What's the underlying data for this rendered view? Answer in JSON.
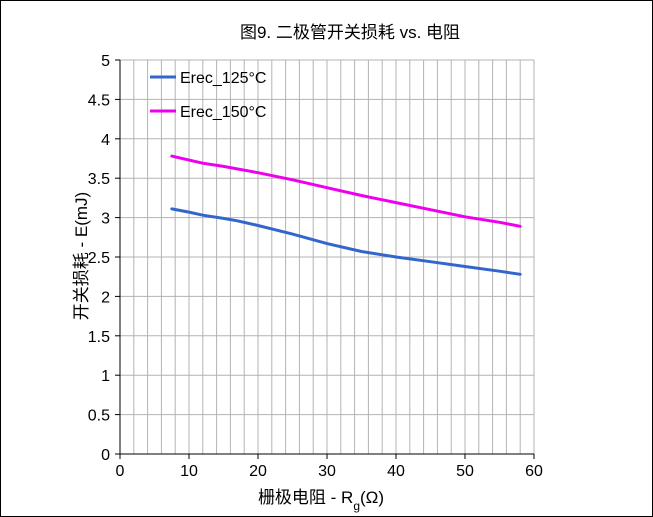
{
  "chart_data": {
    "type": "line",
    "title": "图9. 二极管开关损耗 vs. 电阻",
    "xlabel_main": "栅极电阻 - R",
    "xlabel_sub": "g",
    "xlabel_tail": "(Ω)",
    "ylabel": "开关损耗 - E(mJ)",
    "xlim": [
      0,
      60
    ],
    "ylim": [
      0,
      5
    ],
    "x_ticks": [
      0,
      10,
      20,
      30,
      40,
      50,
      60
    ],
    "x_tick_labels": [
      "0",
      "10",
      "20",
      "30",
      "40",
      "50",
      "60"
    ],
    "y_ticks": [
      0,
      0.5,
      1,
      1.5,
      2,
      2.5,
      3,
      3.5,
      4,
      4.5,
      5
    ],
    "y_tick_labels": [
      "0",
      "0.5",
      "1",
      "1.5",
      "2",
      "2.5",
      "3",
      "3.5",
      "4",
      "4.5",
      "5"
    ],
    "x_minor_step": 2,
    "grid": true,
    "legend_position": "top-left",
    "series": [
      {
        "name": "Erec_125°C",
        "color": "#3366cc",
        "x": [
          7.5,
          10,
          12,
          15,
          17,
          20,
          25,
          30,
          35,
          40,
          45,
          50,
          55,
          58
        ],
        "y": [
          3.11,
          3.07,
          3.03,
          2.99,
          2.96,
          2.9,
          2.79,
          2.67,
          2.57,
          2.5,
          2.44,
          2.38,
          2.32,
          2.28
        ]
      },
      {
        "name": "Erec_150°C",
        "color": "#ee00ee",
        "x": [
          7.5,
          10,
          12,
          15,
          20,
          25,
          30,
          35,
          40,
          45,
          50,
          55,
          58
        ],
        "y": [
          3.78,
          3.73,
          3.69,
          3.65,
          3.57,
          3.48,
          3.38,
          3.28,
          3.19,
          3.1,
          3.01,
          2.94,
          2.89
        ]
      }
    ]
  }
}
